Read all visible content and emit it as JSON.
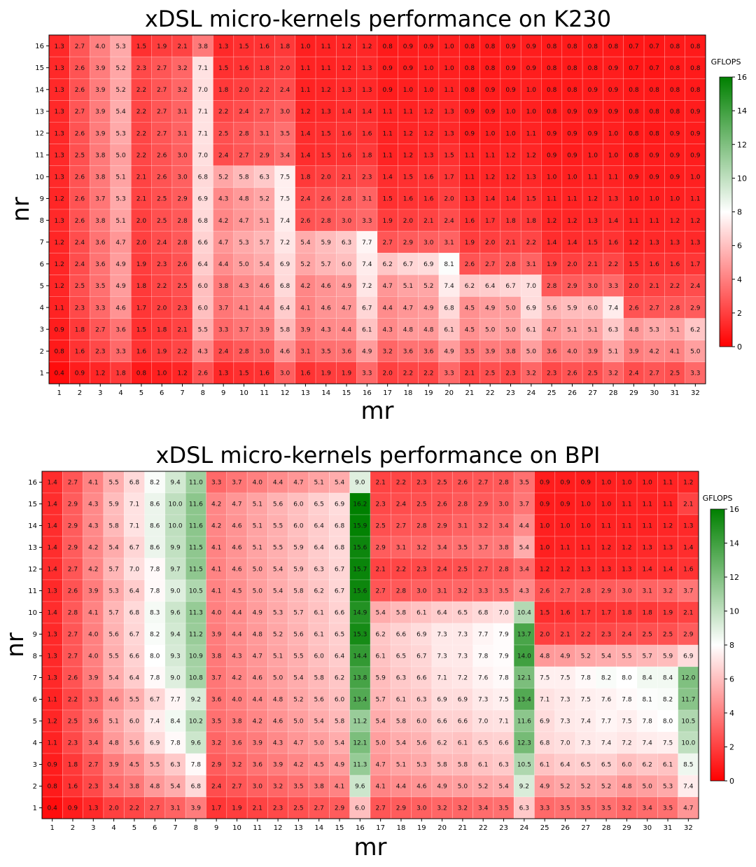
{
  "chart_data": [
    {
      "type": "heatmap",
      "title": "xDSL micro-kernels performance on K230",
      "xlabel": "mr",
      "ylabel": "nr",
      "x": [
        1,
        2,
        3,
        4,
        5,
        6,
        7,
        8,
        9,
        10,
        11,
        12,
        13,
        14,
        15,
        16,
        17,
        18,
        19,
        20,
        21,
        22,
        23,
        24,
        25,
        26,
        27,
        28,
        29,
        30,
        31,
        32
      ],
      "y": [
        16,
        15,
        14,
        13,
        12,
        11,
        10,
        9,
        8,
        7,
        6,
        5,
        4,
        3,
        2,
        1
      ],
      "colorbar": {
        "label": "GFLOPS",
        "range": [
          0,
          16
        ],
        "ticks": [
          0,
          2,
          4,
          6,
          8,
          10,
          12,
          14,
          16
        ],
        "colors": [
          "#ff0000",
          "#ffffff",
          "#008000"
        ]
      },
      "values": [
        [
          1.3,
          2.7,
          4.0,
          5.3,
          1.5,
          1.9,
          2.1,
          3.8,
          1.3,
          1.5,
          1.6,
          1.8,
          1.0,
          1.1,
          1.2,
          1.2,
          0.8,
          0.9,
          0.9,
          1.0,
          0.8,
          0.8,
          0.9,
          0.9,
          0.8,
          0.8,
          0.8,
          0.8,
          0.7,
          0.7,
          0.8,
          0.8
        ],
        [
          1.3,
          2.6,
          3.9,
          5.2,
          2.3,
          2.7,
          3.2,
          7.1,
          1.5,
          1.6,
          1.8,
          2.0,
          1.1,
          1.1,
          1.2,
          1.3,
          0.9,
          0.9,
          1.0,
          1.0,
          0.8,
          0.8,
          0.9,
          0.9,
          0.8,
          0.8,
          0.8,
          0.9,
          0.7,
          0.7,
          0.8,
          0.8
        ],
        [
          1.3,
          2.6,
          3.9,
          5.2,
          2.2,
          2.7,
          3.2,
          7.0,
          1.8,
          2.0,
          2.2,
          2.4,
          1.1,
          1.2,
          1.3,
          1.3,
          0.9,
          1.0,
          1.0,
          1.1,
          0.8,
          0.9,
          0.9,
          1.0,
          0.8,
          0.8,
          0.9,
          0.9,
          0.8,
          0.8,
          0.8,
          0.8
        ],
        [
          1.3,
          2.7,
          3.9,
          5.4,
          2.2,
          2.7,
          3.1,
          7.1,
          2.2,
          2.4,
          2.7,
          3.0,
          1.2,
          1.3,
          1.4,
          1.4,
          1.1,
          1.1,
          1.2,
          1.3,
          0.9,
          0.9,
          1.0,
          1.0,
          0.8,
          0.9,
          0.9,
          0.9,
          0.8,
          0.8,
          0.8,
          0.9
        ],
        [
          1.3,
          2.6,
          3.9,
          5.3,
          2.2,
          2.7,
          3.1,
          7.1,
          2.5,
          2.8,
          3.1,
          3.5,
          1.4,
          1.5,
          1.6,
          1.6,
          1.1,
          1.2,
          1.2,
          1.3,
          0.9,
          1.0,
          1.0,
          1.1,
          0.9,
          0.9,
          0.9,
          1.0,
          0.8,
          0.8,
          0.9,
          0.9
        ],
        [
          1.3,
          2.5,
          3.8,
          5.0,
          2.2,
          2.6,
          3.0,
          7.0,
          2.4,
          2.7,
          2.9,
          3.4,
          1.4,
          1.5,
          1.6,
          1.8,
          1.1,
          1.2,
          1.3,
          1.5,
          1.1,
          1.1,
          1.2,
          1.2,
          0.9,
          0.9,
          1.0,
          1.0,
          0.8,
          0.9,
          0.9,
          0.9
        ],
        [
          1.3,
          2.6,
          3.8,
          5.1,
          2.1,
          2.6,
          3.0,
          6.8,
          5.2,
          5.8,
          6.3,
          7.5,
          1.8,
          2.0,
          2.1,
          2.3,
          1.4,
          1.5,
          1.6,
          1.7,
          1.1,
          1.2,
          1.2,
          1.3,
          1.0,
          1.0,
          1.1,
          1.1,
          0.9,
          0.9,
          0.9,
          1.0
        ],
        [
          1.2,
          2.6,
          3.7,
          5.3,
          2.1,
          2.5,
          2.9,
          6.9,
          4.3,
          4.8,
          5.2,
          7.5,
          2.4,
          2.6,
          2.8,
          3.1,
          1.5,
          1.6,
          1.6,
          2.0,
          1.3,
          1.4,
          1.4,
          1.5,
          1.1,
          1.1,
          1.2,
          1.3,
          1.0,
          1.0,
          1.0,
          1.1
        ],
        [
          1.3,
          2.6,
          3.8,
          5.1,
          2.0,
          2.5,
          2.8,
          6.8,
          4.2,
          4.7,
          5.1,
          7.4,
          2.6,
          2.8,
          3.0,
          3.3,
          1.9,
          2.0,
          2.1,
          2.4,
          1.6,
          1.7,
          1.8,
          1.8,
          1.2,
          1.2,
          1.3,
          1.4,
          1.1,
          1.1,
          1.2,
          1.2
        ],
        [
          1.2,
          2.4,
          3.6,
          4.7,
          2.0,
          2.4,
          2.8,
          6.6,
          4.7,
          5.3,
          5.7,
          7.2,
          5.4,
          5.9,
          6.3,
          7.7,
          2.7,
          2.9,
          3.0,
          3.1,
          1.9,
          2.0,
          2.1,
          2.2,
          1.4,
          1.4,
          1.5,
          1.6,
          1.2,
          1.3,
          1.3,
          1.3
        ],
        [
          1.2,
          2.4,
          3.6,
          4.9,
          1.9,
          2.3,
          2.6,
          6.4,
          4.4,
          5.0,
          5.4,
          6.9,
          5.2,
          5.7,
          6.0,
          7.4,
          6.2,
          6.7,
          6.9,
          8.1,
          2.6,
          2.7,
          2.8,
          3.1,
          1.9,
          2.0,
          2.1,
          2.2,
          1.5,
          1.6,
          1.6,
          1.7
        ],
        [
          1.2,
          2.5,
          3.5,
          4.9,
          1.8,
          2.2,
          2.5,
          6.0,
          3.8,
          4.3,
          4.6,
          6.8,
          4.2,
          4.6,
          4.9,
          7.2,
          4.7,
          5.1,
          5.2,
          7.4,
          6.2,
          6.4,
          6.7,
          7.0,
          2.8,
          2.9,
          3.0,
          3.3,
          2.0,
          2.1,
          2.2,
          2.4
        ],
        [
          1.1,
          2.3,
          3.3,
          4.6,
          1.7,
          2.0,
          2.3,
          6.0,
          3.7,
          4.1,
          4.4,
          6.4,
          4.1,
          4.6,
          4.7,
          6.7,
          4.4,
          4.7,
          4.9,
          6.8,
          4.5,
          4.9,
          5.0,
          6.9,
          5.6,
          5.9,
          6.0,
          7.4,
          2.6,
          2.7,
          2.8,
          2.9
        ],
        [
          0.9,
          1.8,
          2.7,
          3.6,
          1.5,
          1.8,
          2.1,
          5.5,
          3.3,
          3.7,
          3.9,
          5.8,
          3.9,
          4.3,
          4.4,
          6.1,
          4.3,
          4.8,
          4.8,
          6.1,
          4.5,
          5.0,
          5.0,
          6.1,
          4.7,
          5.1,
          5.1,
          6.3,
          4.8,
          5.3,
          5.1,
          6.2
        ],
        [
          0.8,
          1.6,
          2.3,
          3.3,
          1.6,
          1.9,
          2.2,
          4.3,
          2.4,
          2.8,
          3.0,
          4.6,
          3.1,
          3.5,
          3.6,
          4.9,
          3.2,
          3.6,
          3.6,
          4.9,
          3.5,
          3.9,
          3.8,
          5.0,
          3.6,
          4.0,
          3.9,
          5.1,
          3.9,
          4.2,
          4.1,
          5.0
        ],
        [
          0.4,
          0.9,
          1.2,
          1.8,
          0.8,
          1.0,
          1.2,
          2.6,
          1.3,
          1.5,
          1.6,
          3.0,
          1.6,
          1.9,
          1.9,
          3.3,
          2.0,
          2.2,
          2.2,
          3.3,
          2.1,
          2.5,
          2.3,
          3.2,
          2.3,
          2.6,
          2.5,
          3.2,
          2.4,
          2.7,
          2.5,
          3.3
        ]
      ]
    },
    {
      "type": "heatmap",
      "title": "xDSL micro-kernels performance on BPI",
      "xlabel": "mr",
      "ylabel": "nr",
      "x": [
        1,
        2,
        3,
        4,
        5,
        6,
        7,
        8,
        9,
        10,
        11,
        12,
        13,
        14,
        15,
        16,
        17,
        18,
        19,
        20,
        21,
        22,
        23,
        24,
        25,
        26,
        27,
        28,
        29,
        30,
        31,
        32
      ],
      "y": [
        16,
        15,
        14,
        13,
        12,
        11,
        10,
        9,
        8,
        7,
        6,
        5,
        4,
        3,
        2,
        1
      ],
      "colorbar": {
        "label": "GFLOPS",
        "range": [
          0,
          16
        ],
        "ticks": [
          0,
          2,
          4,
          6,
          8,
          10,
          12,
          14,
          16
        ],
        "colors": [
          "#ff0000",
          "#ffffff",
          "#008000"
        ]
      },
      "values": [
        [
          1.4,
          2.7,
          4.1,
          5.5,
          6.8,
          8.2,
          9.4,
          11.0,
          3.3,
          3.7,
          4.0,
          4.4,
          4.7,
          5.1,
          5.4,
          9.0,
          2.1,
          2.2,
          2.3,
          2.5,
          2.6,
          2.7,
          2.8,
          3.5,
          0.9,
          0.9,
          0.9,
          1.0,
          1.0,
          1.0,
          1.1,
          1.2
        ],
        [
          1.4,
          2.9,
          4.3,
          5.9,
          7.1,
          8.6,
          10.0,
          11.6,
          4.2,
          4.7,
          5.1,
          5.6,
          6.0,
          6.5,
          6.9,
          16.2,
          2.3,
          2.4,
          2.5,
          2.6,
          2.8,
          2.9,
          3.0,
          3.7,
          0.9,
          0.9,
          1.0,
          1.0,
          1.1,
          1.1,
          1.1,
          2.1
        ],
        [
          1.4,
          2.9,
          4.3,
          5.8,
          7.1,
          8.6,
          10.0,
          11.6,
          4.2,
          4.6,
          5.1,
          5.5,
          6.0,
          6.4,
          6.8,
          15.9,
          2.5,
          2.7,
          2.8,
          2.9,
          3.1,
          3.2,
          3.4,
          4.4,
          1.0,
          1.0,
          1.0,
          1.1,
          1.1,
          1.1,
          1.2,
          1.3
        ],
        [
          1.4,
          2.9,
          4.2,
          5.4,
          6.7,
          8.6,
          9.9,
          11.5,
          4.1,
          4.6,
          5.1,
          5.5,
          5.9,
          6.4,
          6.8,
          15.6,
          2.9,
          3.1,
          3.2,
          3.4,
          3.5,
          3.7,
          3.8,
          5.4,
          1.0,
          1.1,
          1.1,
          1.2,
          1.2,
          1.3,
          1.3,
          1.4
        ],
        [
          1.4,
          2.7,
          4.2,
          5.7,
          7.0,
          7.8,
          9.7,
          11.5,
          4.1,
          4.6,
          5.0,
          5.4,
          5.9,
          6.3,
          6.7,
          15.7,
          2.1,
          2.2,
          2.3,
          2.4,
          2.5,
          2.7,
          2.8,
          3.4,
          1.2,
          1.2,
          1.3,
          1.3,
          1.3,
          1.4,
          1.4,
          1.6
        ],
        [
          1.3,
          2.6,
          3.9,
          5.3,
          6.4,
          7.8,
          9.0,
          10.5,
          4.1,
          4.5,
          5.0,
          5.4,
          5.8,
          6.2,
          6.7,
          15.6,
          2.7,
          2.8,
          3.0,
          3.1,
          3.2,
          3.3,
          3.5,
          4.3,
          2.6,
          2.7,
          2.8,
          2.9,
          3.0,
          3.1,
          3.2,
          3.7
        ],
        [
          1.4,
          2.8,
          4.1,
          5.7,
          6.8,
          8.3,
          9.6,
          11.3,
          4.0,
          4.4,
          4.9,
          5.3,
          5.7,
          6.1,
          6.6,
          14.9,
          5.4,
          5.8,
          6.1,
          6.4,
          6.5,
          6.8,
          7.0,
          10.4,
          1.5,
          1.6,
          1.7,
          1.7,
          1.8,
          1.8,
          1.9,
          2.1
        ],
        [
          1.3,
          2.7,
          4.0,
          5.6,
          6.7,
          8.2,
          9.4,
          11.2,
          3.9,
          4.4,
          4.8,
          5.2,
          5.6,
          6.1,
          6.5,
          15.3,
          6.2,
          6.6,
          6.9,
          7.3,
          7.3,
          7.7,
          7.9,
          13.7,
          2.0,
          2.1,
          2.2,
          2.3,
          2.4,
          2.5,
          2.5,
          2.9
        ],
        [
          1.3,
          2.7,
          4.0,
          5.5,
          6.6,
          8.0,
          9.3,
          10.9,
          3.8,
          4.3,
          4.7,
          5.1,
          5.5,
          6.0,
          6.4,
          14.4,
          6.1,
          6.5,
          6.7,
          7.3,
          7.3,
          7.8,
          7.9,
          14.0,
          4.8,
          4.9,
          5.2,
          5.4,
          5.5,
          5.7,
          5.9,
          6.9
        ],
        [
          1.3,
          2.6,
          3.9,
          5.4,
          6.4,
          7.8,
          9.0,
          10.8,
          3.7,
          4.2,
          4.6,
          5.0,
          5.4,
          5.8,
          6.2,
          13.8,
          5.9,
          6.3,
          6.6,
          7.1,
          7.2,
          7.6,
          7.8,
          12.1,
          7.5,
          7.5,
          7.8,
          8.2,
          8.0,
          8.4,
          8.4,
          12.0
        ],
        [
          1.1,
          2.2,
          3.3,
          4.6,
          5.5,
          6.7,
          7.7,
          9.2,
          3.6,
          4.0,
          4.4,
          4.8,
          5.2,
          5.6,
          6.0,
          13.4,
          5.7,
          6.1,
          6.3,
          6.9,
          6.9,
          7.3,
          7.5,
          13.4,
          7.1,
          7.3,
          7.5,
          7.6,
          7.8,
          8.1,
          8.2,
          11.7
        ],
        [
          1.2,
          2.5,
          3.6,
          5.1,
          6.0,
          7.4,
          8.4,
          10.2,
          3.5,
          3.8,
          4.2,
          4.6,
          5.0,
          5.4,
          5.8,
          11.2,
          5.4,
          5.8,
          6.0,
          6.6,
          6.6,
          7.0,
          7.1,
          11.6,
          6.9,
          7.3,
          7.4,
          7.7,
          7.5,
          7.8,
          8.0,
          10.5
        ],
        [
          1.1,
          2.3,
          3.4,
          4.8,
          5.6,
          6.9,
          7.8,
          9.6,
          3.2,
          3.6,
          3.9,
          4.3,
          4.7,
          5.0,
          5.4,
          12.1,
          5.0,
          5.4,
          5.6,
          6.2,
          6.1,
          6.5,
          6.6,
          12.3,
          6.8,
          7.0,
          7.3,
          7.4,
          7.2,
          7.4,
          7.5,
          10.0
        ],
        [
          0.9,
          1.8,
          2.7,
          3.9,
          4.5,
          5.5,
          6.3,
          7.8,
          2.9,
          3.2,
          3.6,
          3.9,
          4.2,
          4.5,
          4.9,
          11.3,
          4.7,
          5.1,
          5.3,
          5.8,
          5.8,
          6.1,
          6.3,
          10.5,
          6.1,
          6.4,
          6.5,
          6.5,
          6.0,
          6.2,
          6.1,
          8.5
        ],
        [
          0.8,
          1.6,
          2.3,
          3.4,
          3.8,
          4.8,
          5.4,
          6.8,
          2.4,
          2.7,
          3.0,
          3.2,
          3.5,
          3.8,
          4.1,
          9.6,
          4.1,
          4.4,
          4.6,
          4.9,
          5.0,
          5.2,
          5.4,
          9.2,
          4.9,
          5.2,
          5.2,
          5.2,
          4.8,
          5.0,
          5.3,
          7.4
        ],
        [
          0.4,
          0.9,
          1.3,
          2.0,
          2.2,
          2.7,
          3.1,
          3.9,
          1.7,
          1.9,
          2.1,
          2.3,
          2.5,
          2.7,
          2.9,
          6.0,
          2.7,
          2.9,
          3.0,
          3.2,
          3.2,
          3.4,
          3.5,
          6.3,
          3.3,
          3.5,
          3.5,
          3.5,
          3.2,
          3.4,
          3.5,
          4.7
        ]
      ]
    }
  ]
}
